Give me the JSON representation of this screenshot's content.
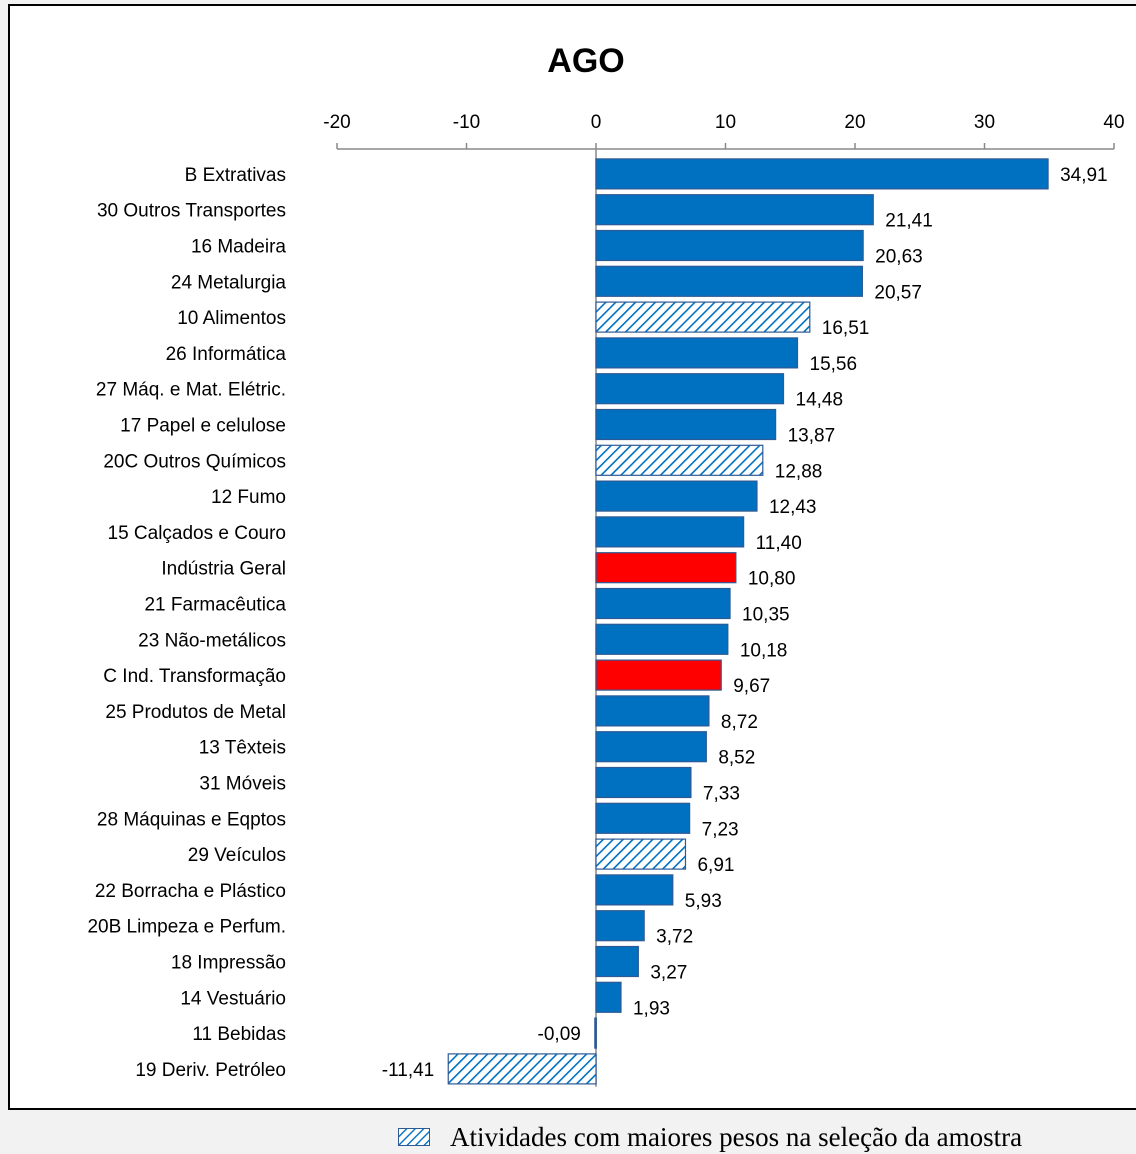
{
  "chart_data": {
    "type": "bar",
    "orientation": "horizontal",
    "title": "AGO",
    "xlabel": "",
    "ylabel": "",
    "xlim": [
      -20,
      40
    ],
    "x_ticks": [
      -20,
      -10,
      0,
      10,
      20,
      30,
      40
    ],
    "x_tick_labels": [
      "-20",
      "-10",
      "0",
      "10",
      "20",
      "30",
      "40"
    ],
    "axis_position": "top",
    "grid": false,
    "categories": [
      "B  Extrativas",
      "30  Outros Transportes",
      "16  Madeira",
      "24  Metalurgia",
      "10  Alimentos",
      "26  Informática",
      "27  Máq. e Mat. Elétric.",
      "17  Papel e celulose",
      "20C  Outros Químicos",
      "12  Fumo",
      "15  Calçados e Couro",
      "Indústria Geral",
      "21  Farmacêutica",
      "23  Não-metálicos",
      "C  Ind. Transformação",
      "25  Produtos de Metal",
      "13  Têxteis",
      "31  Móveis",
      "28  Máquinas e Eqptos",
      "29  Veículos",
      "22  Borracha e Plástico",
      "20B  Limpeza e Perfum.",
      "18  Impressão",
      "14  Vestuário",
      "11  Bebidas",
      "19  Deriv. Petróleo"
    ],
    "values": [
      34.91,
      21.41,
      20.63,
      20.57,
      16.51,
      15.56,
      14.48,
      13.87,
      12.88,
      12.43,
      11.4,
      10.8,
      10.35,
      10.18,
      9.67,
      8.72,
      8.52,
      7.33,
      7.23,
      6.91,
      5.93,
      3.72,
      3.27,
      1.93,
      -0.09,
      -11.41
    ],
    "data_labels": [
      "34,91",
      "21,41",
      "20,63",
      "20,57",
      "16,51",
      "15,56",
      "14,48",
      "13,87",
      "12,88",
      "12,43",
      "11,40",
      "10,80",
      "10,35",
      "10,18",
      "9,67",
      "8,72",
      "8,52",
      "7,33",
      "7,23",
      "6,91",
      "5,93",
      "3,72",
      "3,27",
      "1,93",
      "-0,09",
      "-11,41"
    ],
    "bar_styles": [
      "solid",
      "solid",
      "solid",
      "solid",
      "hatched",
      "solid",
      "solid",
      "solid",
      "hatched",
      "solid",
      "solid",
      "highlight",
      "solid",
      "solid",
      "highlight",
      "solid",
      "solid",
      "solid",
      "solid",
      "hatched",
      "solid",
      "solid",
      "solid",
      "solid",
      "solid",
      "hatched"
    ],
    "colors": {
      "solid": "#0070c0",
      "highlight": "#ff0000",
      "hatch": "#0070c0",
      "hatch_background": "#ffffff",
      "bar_border": "#2e5a94"
    }
  },
  "legend": {
    "label": "Atividades com maiores pesos na seleção da amostra",
    "style": "hatched"
  }
}
